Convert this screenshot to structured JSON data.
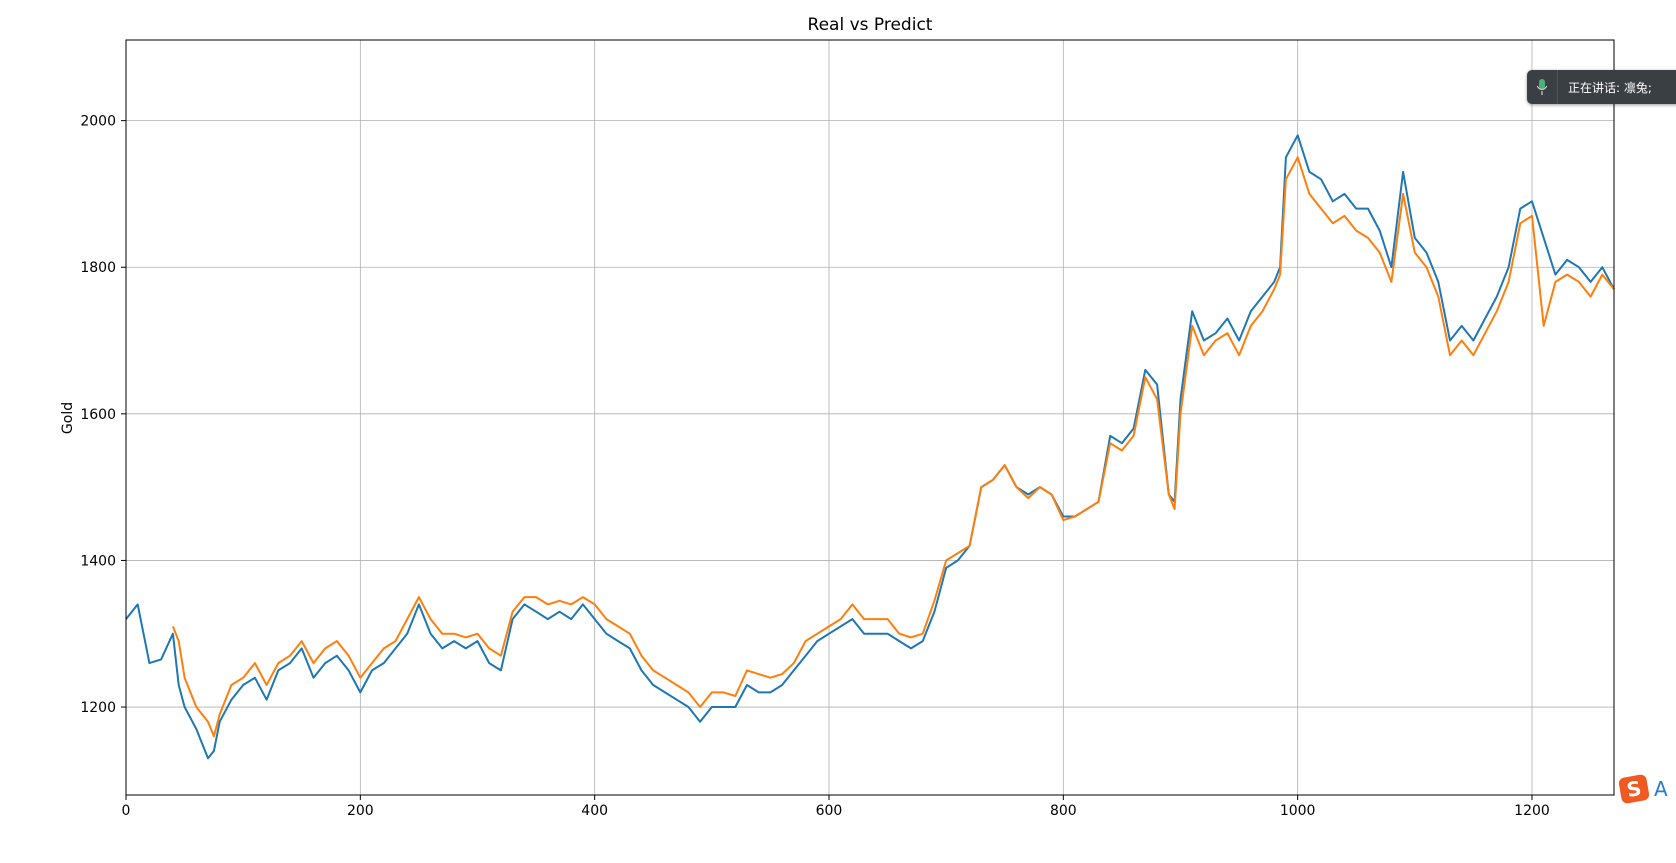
{
  "chart_data": {
    "type": "line",
    "title": "Real vs Predict",
    "xlabel": "",
    "ylabel": "Gold",
    "xlim": [
      0,
      1270
    ],
    "ylim": [
      1080,
      2110
    ],
    "x_ticks": [
      0,
      200,
      400,
      600,
      800,
      1000,
      1200
    ],
    "y_ticks": [
      1200,
      1400,
      1600,
      1800,
      2000
    ],
    "grid": true,
    "colors": {
      "real": "#1f77b4",
      "predict": "#ff7f0e"
    },
    "series": [
      {
        "key": "real",
        "x": [
          0,
          10,
          20,
          30,
          40,
          45,
          50,
          60,
          70,
          75,
          80,
          90,
          100,
          110,
          120,
          130,
          140,
          150,
          160,
          170,
          180,
          190,
          200,
          210,
          220,
          230,
          240,
          250,
          260,
          270,
          280,
          290,
          300,
          310,
          320,
          330,
          340,
          350,
          360,
          370,
          380,
          390,
          400,
          410,
          420,
          430,
          440,
          450,
          460,
          470,
          480,
          490,
          500,
          510,
          520,
          530,
          540,
          550,
          560,
          570,
          580,
          590,
          600,
          610,
          620,
          630,
          640,
          650,
          660,
          670,
          680,
          690,
          700,
          710,
          720,
          730,
          740,
          750,
          760,
          770,
          780,
          790,
          800,
          810,
          820,
          830,
          840,
          850,
          860,
          870,
          880,
          890,
          895,
          900,
          910,
          920,
          930,
          940,
          950,
          960,
          970,
          980,
          985,
          990,
          1000,
          1010,
          1020,
          1030,
          1040,
          1050,
          1060,
          1070,
          1080,
          1090,
          1100,
          1110,
          1120,
          1130,
          1140,
          1150,
          1160,
          1170,
          1180,
          1190,
          1200,
          1210,
          1220,
          1230,
          1240,
          1250,
          1260,
          1270
        ],
        "y": [
          1320,
          1340,
          1260,
          1265,
          1300,
          1230,
          1200,
          1170,
          1130,
          1140,
          1180,
          1210,
          1230,
          1240,
          1210,
          1250,
          1260,
          1280,
          1240,
          1260,
          1270,
          1250,
          1220,
          1250,
          1260,
          1280,
          1300,
          1340,
          1300,
          1280,
          1290,
          1280,
          1290,
          1260,
          1250,
          1320,
          1340,
          1330,
          1320,
          1330,
          1320,
          1340,
          1320,
          1300,
          1290,
          1280,
          1250,
          1230,
          1220,
          1210,
          1200,
          1180,
          1200,
          1200,
          1200,
          1230,
          1220,
          1220,
          1230,
          1250,
          1270,
          1290,
          1300,
          1310,
          1320,
          1300,
          1300,
          1300,
          1290,
          1280,
          1290,
          1330,
          1390,
          1400,
          1420,
          1500,
          1510,
          1530,
          1500,
          1490,
          1500,
          1490,
          1460,
          1460,
          1470,
          1480,
          1570,
          1560,
          1580,
          1660,
          1640,
          1490,
          1480,
          1620,
          1740,
          1700,
          1710,
          1730,
          1700,
          1740,
          1760,
          1780,
          1800,
          1950,
          1980,
          1930,
          1920,
          1890,
          1900,
          1880,
          1880,
          1850,
          1800,
          1930,
          1840,
          1820,
          1780,
          1700,
          1720,
          1700,
          1730,
          1760,
          1800,
          1880,
          1890,
          1840,
          1790,
          1810,
          1800,
          1780,
          1800,
          1770
        ],
        "name": ""
      },
      {
        "key": "predict",
        "x": [
          40,
          45,
          50,
          60,
          70,
          75,
          80,
          90,
          100,
          110,
          120,
          130,
          140,
          150,
          160,
          170,
          180,
          190,
          200,
          210,
          220,
          230,
          240,
          250,
          260,
          270,
          280,
          290,
          300,
          310,
          320,
          330,
          340,
          350,
          360,
          370,
          380,
          390,
          400,
          410,
          420,
          430,
          440,
          450,
          460,
          470,
          480,
          490,
          500,
          510,
          520,
          530,
          540,
          550,
          560,
          570,
          580,
          590,
          600,
          610,
          620,
          630,
          640,
          650,
          660,
          670,
          680,
          690,
          700,
          710,
          720,
          730,
          740,
          750,
          760,
          770,
          780,
          790,
          800,
          810,
          820,
          830,
          840,
          850,
          860,
          870,
          880,
          890,
          895,
          900,
          910,
          920,
          930,
          940,
          950,
          960,
          970,
          980,
          985,
          990,
          1000,
          1010,
          1020,
          1030,
          1040,
          1050,
          1060,
          1070,
          1080,
          1090,
          1100,
          1110,
          1120,
          1130,
          1140,
          1150,
          1160,
          1170,
          1180,
          1190,
          1200,
          1210,
          1220,
          1230,
          1240,
          1250,
          1260,
          1270
        ],
        "y": [
          1310,
          1290,
          1240,
          1200,
          1180,
          1160,
          1190,
          1230,
          1240,
          1260,
          1230,
          1260,
          1270,
          1290,
          1260,
          1280,
          1290,
          1270,
          1240,
          1260,
          1280,
          1290,
          1320,
          1350,
          1320,
          1300,
          1300,
          1295,
          1300,
          1280,
          1270,
          1330,
          1350,
          1350,
          1340,
          1345,
          1340,
          1350,
          1340,
          1320,
          1310,
          1300,
          1270,
          1250,
          1240,
          1230,
          1220,
          1200,
          1220,
          1220,
          1215,
          1250,
          1245,
          1240,
          1245,
          1260,
          1290,
          1300,
          1310,
          1320,
          1340,
          1320,
          1320,
          1320,
          1300,
          1295,
          1300,
          1345,
          1400,
          1410,
          1420,
          1500,
          1510,
          1530,
          1500,
          1485,
          1500,
          1490,
          1455,
          1460,
          1470,
          1480,
          1560,
          1550,
          1570,
          1650,
          1620,
          1490,
          1470,
          1600,
          1720,
          1680,
          1700,
          1710,
          1680,
          1720,
          1740,
          1770,
          1790,
          1920,
          1950,
          1900,
          1880,
          1860,
          1870,
          1850,
          1840,
          1820,
          1780,
          1900,
          1820,
          1800,
          1760,
          1680,
          1700,
          1680,
          1710,
          1740,
          1780,
          1860,
          1870,
          1720,
          1780,
          1790,
          1780,
          1760,
          1790,
          1770
        ],
        "name": ""
      }
    ]
  },
  "overlays": {
    "voice_toast": {
      "text": "正在讲话: 凛兔;",
      "icon": "microphone-icon"
    },
    "ime": {
      "logo_letter": "S",
      "mode_letter": "A",
      "icon": "sogou-ime-icon"
    }
  }
}
